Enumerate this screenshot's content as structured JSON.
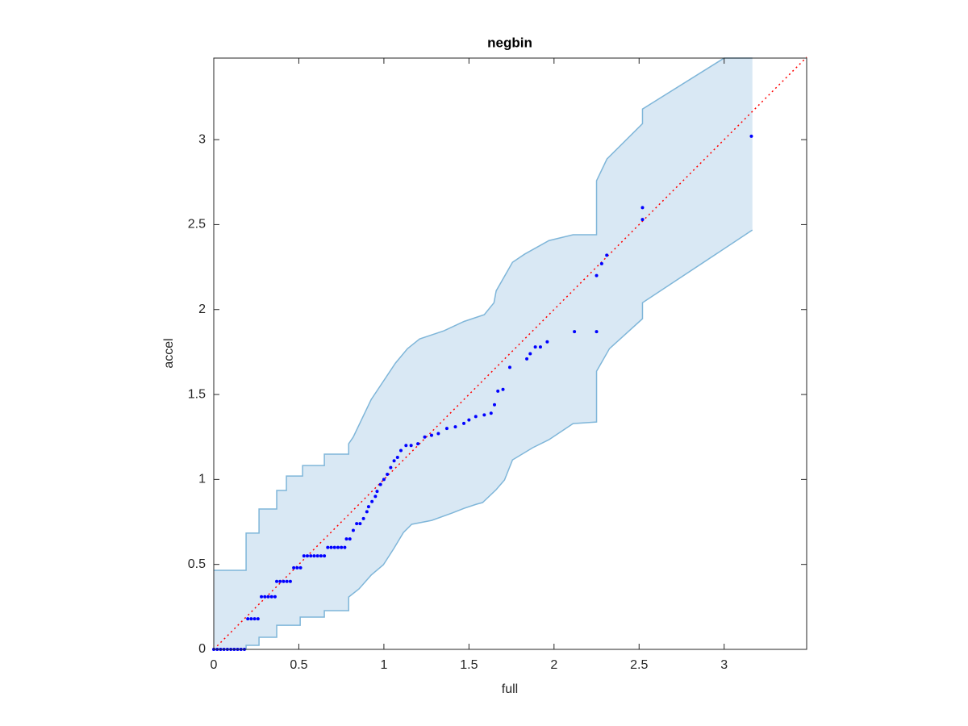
{
  "chart_data": {
    "type": "scatter",
    "title": "negbin",
    "xlabel": "full",
    "ylabel": "accel",
    "xlim": [
      0,
      3.485
    ],
    "ylim": [
      0,
      3.48
    ],
    "xticks": [
      0,
      0.5,
      1,
      1.5,
      2,
      2.5,
      3
    ],
    "yticks": [
      0,
      0.5,
      1,
      1.5,
      2,
      2.5,
      3
    ],
    "box": true,
    "band": {
      "fill": "#d9e8f4",
      "edge": "#7fb6d9",
      "upper": {
        "x": [
          0,
          0.19,
          0.19,
          0.266,
          0.266,
          0.37,
          0.37,
          0.427,
          0.427,
          0.522,
          0.522,
          0.65,
          0.65,
          0.793,
          0.793,
          0.82,
          0.925,
          1.068,
          1.139,
          1.21,
          1.353,
          1.471,
          1.59,
          1.647,
          1.66,
          1.756,
          1.827,
          1.97,
          2.112,
          2.25,
          2.25,
          2.311,
          2.52,
          2.52,
          3.0,
          3.166
        ],
        "y": [
          0.465,
          0.465,
          0.684,
          0.684,
          0.826,
          0.826,
          0.935,
          0.935,
          1.02,
          1.02,
          1.082,
          1.082,
          1.149,
          1.149,
          1.21,
          1.25,
          1.47,
          1.685,
          1.77,
          1.827,
          1.875,
          1.93,
          1.97,
          2.04,
          2.11,
          2.278,
          2.326,
          2.406,
          2.44,
          2.44,
          2.758,
          2.886,
          3.094,
          3.18,
          3.48,
          3.48
        ]
      },
      "lower": {
        "x": [
          0,
          0.19,
          0.19,
          0.266,
          0.266,
          0.37,
          0.37,
          0.508,
          0.508,
          0.65,
          0.65,
          0.793,
          0.793,
          0.854,
          0.925,
          0.997,
          1.058,
          1.115,
          1.163,
          1.281,
          1.4,
          1.471,
          1.543,
          1.58,
          1.66,
          1.709,
          1.756,
          1.875,
          1.97,
          2.112,
          2.25,
          2.25,
          2.326,
          2.52,
          2.52,
          3.166
        ],
        "y": [
          0,
          0,
          0.024,
          0.024,
          0.071,
          0.071,
          0.142,
          0.142,
          0.19,
          0.19,
          0.228,
          0.228,
          0.308,
          0.356,
          0.437,
          0.498,
          0.593,
          0.688,
          0.736,
          0.759,
          0.802,
          0.83,
          0.854,
          0.864,
          0.94,
          0.997,
          1.115,
          1.187,
          1.234,
          1.329,
          1.338,
          1.637,
          1.77,
          1.946,
          2.04,
          2.468
        ]
      }
    },
    "reference_line": {
      "color": "#ff0000",
      "x": [
        0,
        3.485
      ],
      "y": [
        0,
        3.485
      ]
    },
    "points": {
      "color": "#0000ff",
      "x": [
        0,
        0.02,
        0.04,
        0.06,
        0.08,
        0.1,
        0.12,
        0.14,
        0.16,
        0.18,
        0.2,
        0.22,
        0.24,
        0.26,
        0.28,
        0.3,
        0.32,
        0.34,
        0.36,
        0.37,
        0.39,
        0.41,
        0.43,
        0.45,
        0.47,
        0.49,
        0.51,
        0.53,
        0.55,
        0.57,
        0.59,
        0.61,
        0.63,
        0.65,
        0.67,
        0.69,
        0.71,
        0.73,
        0.75,
        0.77,
        0.78,
        0.8,
        0.82,
        0.84,
        0.86,
        0.88,
        0.9,
        0.91,
        0.93,
        0.95,
        0.96,
        0.98,
        1.0,
        1.02,
        1.04,
        1.06,
        1.08,
        1.1,
        1.13,
        1.16,
        1.2,
        1.24,
        1.28,
        1.32,
        1.37,
        1.42,
        1.47,
        1.5,
        1.54,
        1.59,
        1.63,
        1.65,
        1.67,
        1.7,
        1.74,
        1.84,
        1.86,
        1.89,
        1.92,
        1.96,
        2.12,
        2.25,
        2.25,
        2.28,
        2.31,
        2.52,
        2.52,
        3.16
      ],
      "y": [
        0,
        0,
        0,
        0,
        0,
        0,
        0,
        0,
        0,
        0,
        0.18,
        0.18,
        0.18,
        0.18,
        0.31,
        0.31,
        0.31,
        0.31,
        0.31,
        0.4,
        0.4,
        0.4,
        0.4,
        0.4,
        0.48,
        0.48,
        0.48,
        0.55,
        0.55,
        0.55,
        0.55,
        0.55,
        0.55,
        0.55,
        0.6,
        0.6,
        0.6,
        0.6,
        0.6,
        0.6,
        0.65,
        0.65,
        0.7,
        0.74,
        0.74,
        0.77,
        0.81,
        0.84,
        0.87,
        0.9,
        0.93,
        0.97,
        1.0,
        1.03,
        1.07,
        1.11,
        1.13,
        1.17,
        1.2,
        1.2,
        1.21,
        1.25,
        1.26,
        1.27,
        1.3,
        1.31,
        1.33,
        1.35,
        1.37,
        1.38,
        1.39,
        1.44,
        1.52,
        1.53,
        1.66,
        1.71,
        1.74,
        1.78,
        1.78,
        1.81,
        1.87,
        1.87,
        2.2,
        2.27,
        2.32,
        2.53,
        2.6,
        3.02
      ]
    }
  }
}
